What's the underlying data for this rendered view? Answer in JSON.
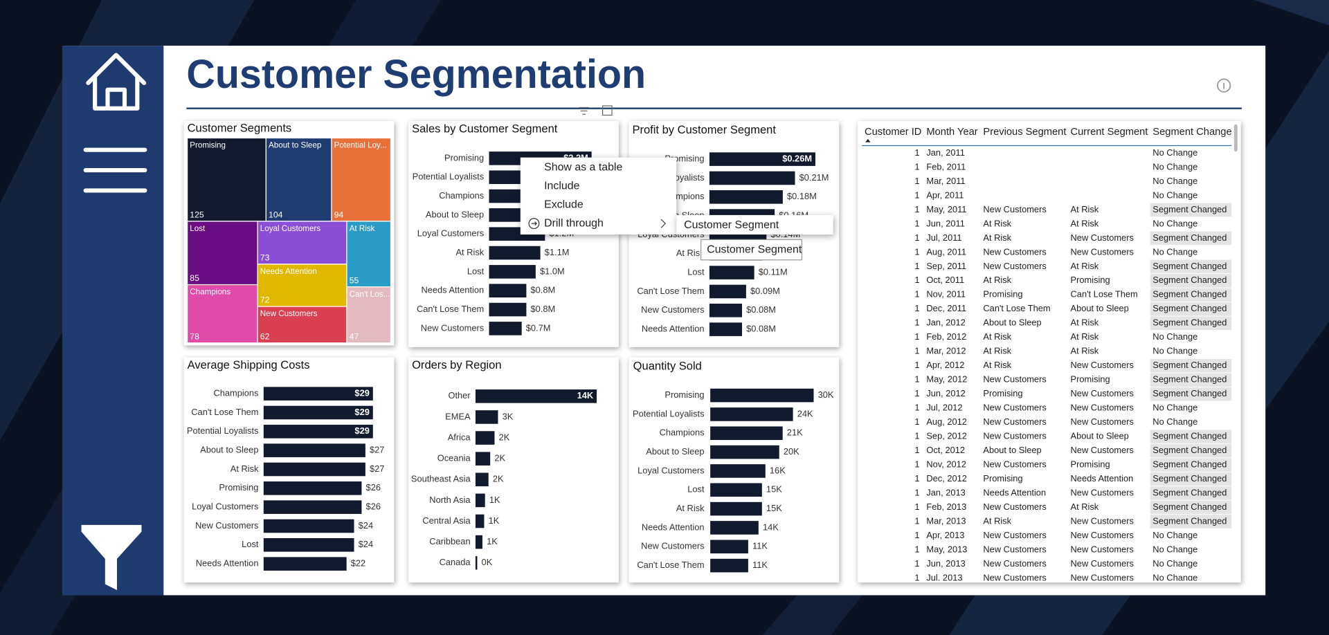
{
  "header": {
    "title": "Customer Segmentation"
  },
  "chart_data": [
    {
      "type": "treemap",
      "title": "Customer Segments",
      "categories": [
        "Promising",
        "About to Sleep",
        "Potential Loy...",
        "Lost",
        "Loyal Customers",
        "At Risk",
        "Needs Attention",
        "Champions",
        "New Customers",
        "Can't Los..."
      ],
      "values": [
        125,
        104,
        94,
        85,
        73,
        55,
        72,
        78,
        62,
        47
      ],
      "colors": [
        "#131a2e",
        "#1f3d73",
        "#e8703a",
        "#6a0d83",
        "#8a4fd6",
        "#2a9bc4",
        "#e0b800",
        "#e04aaa",
        "#d94050",
        "#e4b9c0"
      ]
    },
    {
      "type": "bar",
      "orientation": "horizontal",
      "title": "Sales by Customer Segment",
      "color": "#121a2e",
      "categories": [
        "Promising",
        "Potential Loyalists",
        "Champions",
        "About to Sleep",
        "Loyal Customers",
        "At Risk",
        "Lost",
        "Needs Attention",
        "Can't Lose Them",
        "New Customers"
      ],
      "values": [
        2.2,
        1.8,
        1.6,
        1.4,
        1.2,
        1.1,
        1.0,
        0.8,
        0.8,
        0.7
      ],
      "value_labels": [
        "$2.2M",
        "$1.8M",
        "$1.6M",
        "$1.4M",
        "$1.2M",
        "$1.1M",
        "$1.0M",
        "$0.8M",
        "$0.8M",
        "$0.7M"
      ]
    },
    {
      "type": "bar",
      "orientation": "horizontal",
      "title": "Profit by Customer Segment",
      "color": "#121a2e",
      "categories": [
        "Promising",
        "Potential Loyalists",
        "Champions",
        "About to Sleep",
        "Loyal Customers",
        "At Risk",
        "Lost",
        "Can't Lose Them",
        "New Customers",
        "Needs Attention"
      ],
      "values": [
        0.26,
        0.21,
        0.18,
        0.16,
        0.14,
        0.13,
        0.11,
        0.09,
        0.08,
        0.08
      ],
      "value_labels": [
        "$0.26M",
        "$0.21M",
        "$0.18M",
        "$0.16M",
        "$0.14M",
        "$0.13M",
        "$0.11M",
        "$0.09M",
        "$0.08M",
        "$0.08M"
      ]
    },
    {
      "type": "bar",
      "orientation": "horizontal",
      "title": "Average Shipping Costs",
      "color": "#121a2e",
      "categories": [
        "Champions",
        "Can't Lose Them",
        "Potential Loyalists",
        "About to Sleep",
        "At Risk",
        "Promising",
        "Loyal Customers",
        "New Customers",
        "Lost",
        "Needs Attention"
      ],
      "values": [
        29,
        29,
        29,
        27,
        27,
        26,
        26,
        24,
        24,
        22
      ],
      "value_labels": [
        "$29",
        "$29",
        "$29",
        "$27",
        "$27",
        "$26",
        "$26",
        "$24",
        "$24",
        "$22"
      ]
    },
    {
      "type": "bar",
      "orientation": "horizontal",
      "title": "Orders by Region",
      "color": "#121a2e",
      "categories": [
        "Other",
        "EMEA",
        "Africa",
        "Oceania",
        "Southeast Asia",
        "North Asia",
        "Central Asia",
        "Caribbean",
        "Canada"
      ],
      "values": [
        14,
        2.6,
        2.2,
        1.7,
        1.5,
        1.1,
        1.0,
        0.8,
        0.2
      ],
      "value_labels": [
        "14K",
        "3K",
        "2K",
        "2K",
        "2K",
        "1K",
        "1K",
        "1K",
        "0K"
      ]
    },
    {
      "type": "bar",
      "orientation": "horizontal",
      "title": "Quantity Sold",
      "color": "#121a2e",
      "categories": [
        "Promising",
        "Potential Loyalists",
        "Champions",
        "About to Sleep",
        "Loyal Customers",
        "Lost",
        "At Risk",
        "Needs Attention",
        "New Customers",
        "Can't Lose Them"
      ],
      "values": [
        30,
        24,
        21,
        20,
        16,
        15,
        15,
        14,
        11,
        11
      ],
      "value_labels": [
        "30K",
        "24K",
        "21K",
        "20K",
        "16K",
        "15K",
        "15K",
        "14K",
        "11K",
        "11K"
      ]
    }
  ],
  "table": {
    "columns": [
      "Customer ID",
      "Month Year",
      "Previous Segment",
      "Current Segment",
      "Segment Change"
    ],
    "rows": [
      [
        1,
        "Jan, 2011",
        null,
        null,
        "No Change"
      ],
      [
        1,
        "Feb, 2011",
        null,
        null,
        "No Change"
      ],
      [
        1,
        "Mar, 2011",
        null,
        null,
        "No Change"
      ],
      [
        1,
        "Apr, 2011",
        null,
        null,
        "No Change"
      ],
      [
        1,
        "May, 2011",
        "New Customers",
        "At Risk",
        "Segment Changed"
      ],
      [
        1,
        "Jun, 2011",
        "At Risk",
        "At Risk",
        "No Change"
      ],
      [
        1,
        "Jul, 2011",
        "At Risk",
        "New Customers",
        "Segment Changed"
      ],
      [
        1,
        "Aug, 2011",
        "New Customers",
        "New Customers",
        "No Change"
      ],
      [
        1,
        "Sep, 2011",
        "New Customers",
        "At Risk",
        "Segment Changed"
      ],
      [
        1,
        "Oct, 2011",
        "At Risk",
        "Promising",
        "Segment Changed"
      ],
      [
        1,
        "Nov, 2011",
        "Promising",
        "Can't Lose Them",
        "Segment Changed"
      ],
      [
        1,
        "Dec, 2011",
        "Can't Lose Them",
        "About to Sleep",
        "Segment Changed"
      ],
      [
        1,
        "Jan, 2012",
        "About to Sleep",
        "At Risk",
        "Segment Changed"
      ],
      [
        1,
        "Feb, 2012",
        "At Risk",
        "At Risk",
        "No Change"
      ],
      [
        1,
        "Mar, 2012",
        "At Risk",
        "At Risk",
        "No Change"
      ],
      [
        1,
        "Apr, 2012",
        "At Risk",
        "New Customers",
        "Segment Changed"
      ],
      [
        1,
        "May, 2012",
        "New Customers",
        "Promising",
        "Segment Changed"
      ],
      [
        1,
        "Jun, 2012",
        "Promising",
        "New Customers",
        "Segment Changed"
      ],
      [
        1,
        "Jul, 2012",
        "New Customers",
        "New Customers",
        "No Change"
      ],
      [
        1,
        "Aug, 2012",
        "New Customers",
        "New Customers",
        "No Change"
      ],
      [
        1,
        "Sep, 2012",
        "New Customers",
        "About to Sleep",
        "Segment Changed"
      ],
      [
        1,
        "Oct, 2012",
        "About to Sleep",
        "New Customers",
        "Segment Changed"
      ],
      [
        1,
        "Nov, 2012",
        "New Customers",
        "Promising",
        "Segment Changed"
      ],
      [
        1,
        "Dec, 2012",
        "Promising",
        "Needs Attention",
        "Segment Changed"
      ],
      [
        1,
        "Jan, 2013",
        "Needs Attention",
        "New Customers",
        "Segment Changed"
      ],
      [
        1,
        "Feb, 2013",
        "New Customers",
        "At Risk",
        "Segment Changed"
      ],
      [
        1,
        "Mar, 2013",
        "At Risk",
        "New Customers",
        "Segment Changed"
      ],
      [
        1,
        "Apr, 2013",
        "New Customers",
        "New Customers",
        "No Change"
      ],
      [
        1,
        "May, 2013",
        "New Customers",
        "New Customers",
        "No Change"
      ],
      [
        1,
        "Jun, 2013",
        "New Customers",
        "New Customers",
        "No Change"
      ],
      [
        1,
        "Jul, 2013",
        "New Customers",
        "New Customers",
        "No Change"
      ]
    ]
  },
  "context_menu": {
    "items": [
      "Show as a table",
      "Include",
      "Exclude",
      "Drill through"
    ],
    "submenu": [
      "Customer Segment"
    ],
    "tooltip": "Customer Segment"
  }
}
